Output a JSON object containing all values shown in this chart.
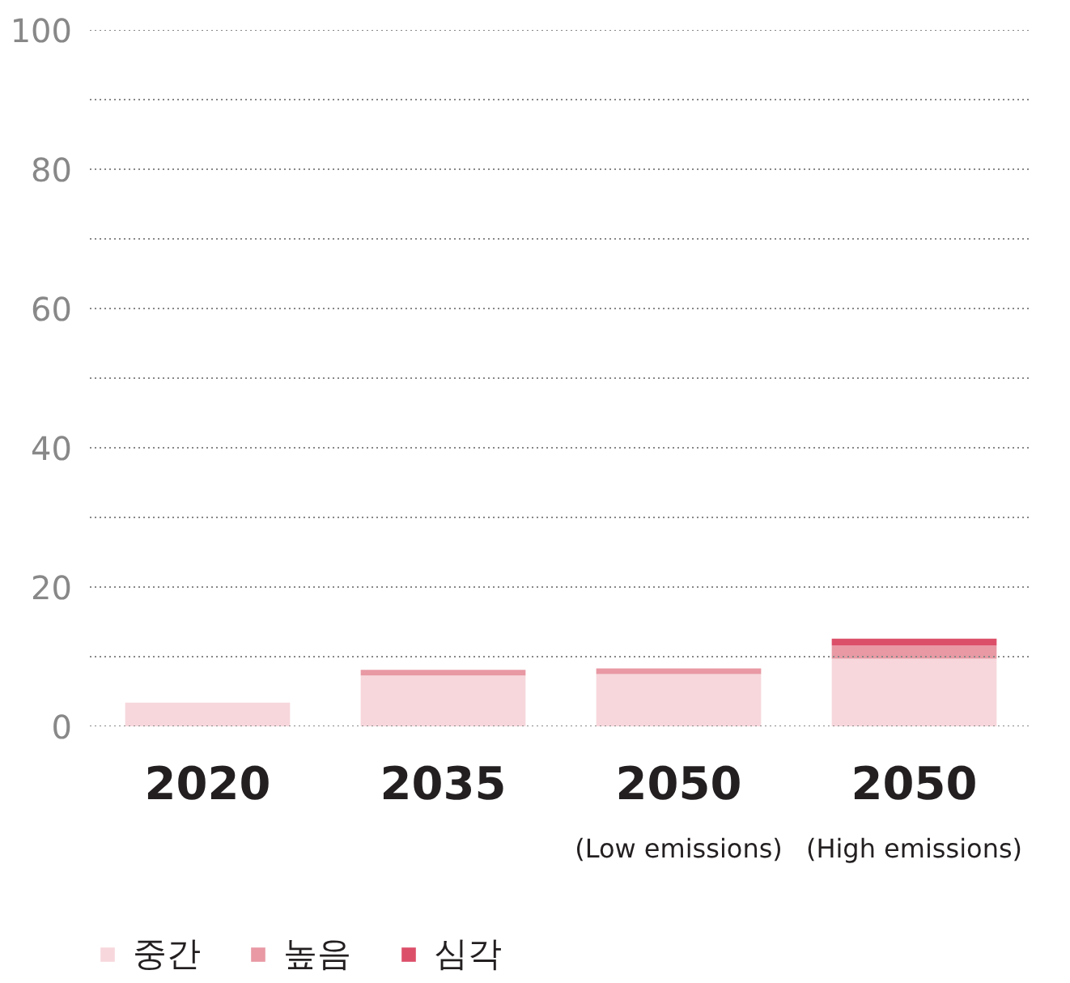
{
  "chart_data": {
    "type": "bar",
    "stacked": true,
    "categories": [
      "2020",
      "2035",
      "2050\n(Low emissions)",
      "2050\n(High emissions)"
    ],
    "series": [
      {
        "name": "중간",
        "color": "#f7d7dc",
        "values": [
          3.4,
          7.3,
          7.5,
          9.7
        ]
      },
      {
        "name": "높음",
        "color": "#e899a4",
        "values": [
          0,
          0.8,
          0.8,
          1.9
        ]
      },
      {
        "name": "심각",
        "color": "#dc4f69",
        "values": [
          0,
          0,
          0,
          1.0
        ]
      }
    ],
    "ylim": [
      0,
      100
    ],
    "yticks": [
      0,
      {
        "value": 10,
        "label": null
      },
      20,
      {
        "value": 30,
        "label": null
      },
      40,
      {
        "value": 50,
        "label": null
      },
      60,
      {
        "value": 70,
        "label": null
      },
      80,
      {
        "value": 90,
        "label": null
      },
      100
    ],
    "grid": "y",
    "legend": "bottom"
  }
}
